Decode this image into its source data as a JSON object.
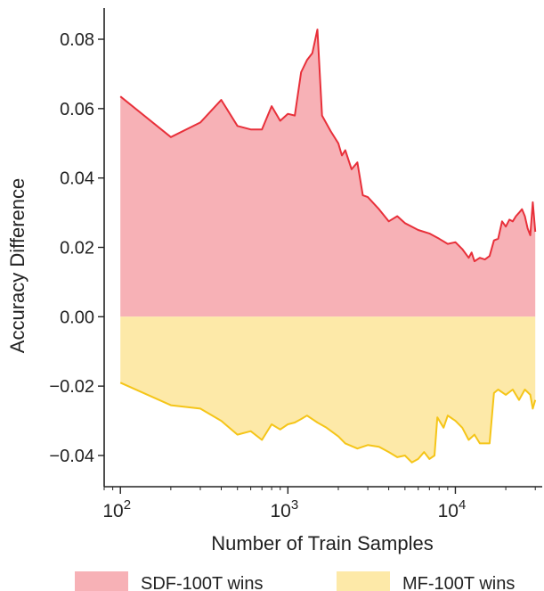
{
  "chart_data": {
    "type": "area",
    "xlabel": "Number of Train Samples",
    "ylabel": "Accuracy Difference",
    "xscale": "log",
    "xlim": [
      80,
      33000
    ],
    "ylim": [
      -0.049,
      0.089
    ],
    "grid": false,
    "legend_position": "bottom",
    "x_ticks": [
      {
        "value": 100,
        "base": "10",
        "exp": "2"
      },
      {
        "value": 1000,
        "base": "10",
        "exp": "3"
      },
      {
        "value": 10000,
        "base": "10",
        "exp": "4"
      }
    ],
    "y_ticks": [
      {
        "value": 0.08,
        "label": "0.08"
      },
      {
        "value": 0.06,
        "label": "0.06"
      },
      {
        "value": 0.04,
        "label": "0.04"
      },
      {
        "value": 0.02,
        "label": "0.02"
      },
      {
        "value": 0.0,
        "label": "0.00"
      },
      {
        "value": -0.02,
        "label": "−0.02"
      },
      {
        "value": -0.04,
        "label": "−0.04"
      }
    ],
    "series": [
      {
        "name": "SDF-100T wins",
        "line_color": "#e8303a",
        "fill_color": "#f7b1b6",
        "points": [
          [
            100,
            0.0635
          ],
          [
            200,
            0.0518
          ],
          [
            300,
            0.056
          ],
          [
            400,
            0.0625
          ],
          [
            500,
            0.055
          ],
          [
            600,
            0.054
          ],
          [
            700,
            0.054
          ],
          [
            800,
            0.0607
          ],
          [
            900,
            0.0565
          ],
          [
            1000,
            0.0585
          ],
          [
            1100,
            0.058
          ],
          [
            1200,
            0.0705
          ],
          [
            1300,
            0.074
          ],
          [
            1400,
            0.076
          ],
          [
            1500,
            0.0828
          ],
          [
            1600,
            0.058
          ],
          [
            1800,
            0.0535
          ],
          [
            2000,
            0.05
          ],
          [
            2100,
            0.0465
          ],
          [
            2200,
            0.048
          ],
          [
            2400,
            0.0425
          ],
          [
            2600,
            0.0445
          ],
          [
            2800,
            0.035
          ],
          [
            3000,
            0.0345
          ],
          [
            3500,
            0.031
          ],
          [
            4000,
            0.0275
          ],
          [
            4500,
            0.029
          ],
          [
            5000,
            0.027
          ],
          [
            6000,
            0.025
          ],
          [
            7000,
            0.024
          ],
          [
            8000,
            0.0225
          ],
          [
            9000,
            0.021
          ],
          [
            10000,
            0.0215
          ],
          [
            11000,
            0.0195
          ],
          [
            12000,
            0.017
          ],
          [
            12500,
            0.0185
          ],
          [
            13000,
            0.016
          ],
          [
            14000,
            0.017
          ],
          [
            15000,
            0.0165
          ],
          [
            16000,
            0.0175
          ],
          [
            17000,
            0.022
          ],
          [
            18000,
            0.0225
          ],
          [
            19000,
            0.0275
          ],
          [
            20000,
            0.026
          ],
          [
            21000,
            0.028
          ],
          [
            22000,
            0.0275
          ],
          [
            23000,
            0.029
          ],
          [
            24000,
            0.03
          ],
          [
            25000,
            0.031
          ],
          [
            26000,
            0.029
          ],
          [
            27000,
            0.0255
          ],
          [
            28000,
            0.0235
          ],
          [
            29000,
            0.033
          ],
          [
            30000,
            0.0245
          ]
        ]
      },
      {
        "name": "MF-100T wins",
        "line_color": "#f5c518",
        "fill_color": "#fde9a8",
        "points": [
          [
            100,
            -0.019
          ],
          [
            200,
            -0.0255
          ],
          [
            300,
            -0.0265
          ],
          [
            400,
            -0.03
          ],
          [
            500,
            -0.034
          ],
          [
            600,
            -0.033
          ],
          [
            700,
            -0.0355
          ],
          [
            800,
            -0.031
          ],
          [
            900,
            -0.0325
          ],
          [
            1000,
            -0.031
          ],
          [
            1100,
            -0.0305
          ],
          [
            1200,
            -0.0295
          ],
          [
            1300,
            -0.0285
          ],
          [
            1500,
            -0.0305
          ],
          [
            1700,
            -0.032
          ],
          [
            2000,
            -0.0345
          ],
          [
            2200,
            -0.0365
          ],
          [
            2600,
            -0.038
          ],
          [
            3000,
            -0.037
          ],
          [
            3500,
            -0.0375
          ],
          [
            4000,
            -0.039
          ],
          [
            4500,
            -0.0405
          ],
          [
            5000,
            -0.04
          ],
          [
            5500,
            -0.042
          ],
          [
            6000,
            -0.041
          ],
          [
            6500,
            -0.039
          ],
          [
            7000,
            -0.041
          ],
          [
            7500,
            -0.04
          ],
          [
            7800,
            -0.029
          ],
          [
            8500,
            -0.032
          ],
          [
            9000,
            -0.0285
          ],
          [
            10000,
            -0.03
          ],
          [
            11000,
            -0.032
          ],
          [
            12000,
            -0.0355
          ],
          [
            13000,
            -0.034
          ],
          [
            14000,
            -0.0365
          ],
          [
            15000,
            -0.0365
          ],
          [
            16000,
            -0.0365
          ],
          [
            17000,
            -0.022
          ],
          [
            18000,
            -0.021
          ],
          [
            20000,
            -0.0225
          ],
          [
            22000,
            -0.021
          ],
          [
            24000,
            -0.024
          ],
          [
            26000,
            -0.021
          ],
          [
            28000,
            -0.0225
          ],
          [
            29000,
            -0.0265
          ],
          [
            30000,
            -0.024
          ]
        ]
      }
    ]
  }
}
